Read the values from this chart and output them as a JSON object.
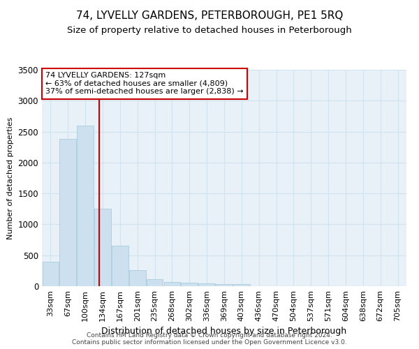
{
  "title": "74, LYVELLY GARDENS, PETERBOROUGH, PE1 5RQ",
  "subtitle": "Size of property relative to detached houses in Peterborough",
  "xlabel": "Distribution of detached houses by size in Peterborough",
  "ylabel": "Number of detached properties",
  "footer_line1": "Contains HM Land Registry data © Crown copyright and database right 2024.",
  "footer_line2": "Contains public sector information licensed under the Open Government Licence v3.0.",
  "categories": [
    "33sqm",
    "67sqm",
    "100sqm",
    "134sqm",
    "167sqm",
    "201sqm",
    "235sqm",
    "268sqm",
    "302sqm",
    "336sqm",
    "369sqm",
    "403sqm",
    "436sqm",
    "470sqm",
    "504sqm",
    "537sqm",
    "571sqm",
    "604sqm",
    "638sqm",
    "672sqm",
    "705sqm"
  ],
  "values": [
    400,
    2380,
    2600,
    1250,
    650,
    260,
    110,
    65,
    55,
    50,
    30,
    30,
    5,
    5,
    0,
    0,
    0,
    0,
    0,
    0,
    0
  ],
  "bar_color": "#cce0f0",
  "bar_edge_color": "#aaccdd",
  "grid_color": "#d0e4f0",
  "background_color": "#e8f0f8",
  "annotation_line1": "74 LYVELLY GARDENS: 127sqm",
  "annotation_line2": "← 63% of detached houses are smaller (4,809)",
  "annotation_line3": "37% of semi-detached houses are larger (2,838) →",
  "vline_color": "#cc0000",
  "annotation_box_edge": "#cc0000",
  "ylim": [
    0,
    3500
  ],
  "yticks": [
    0,
    500,
    1000,
    1500,
    2000,
    2500,
    3000,
    3500
  ],
  "title_fontsize": 11,
  "subtitle_fontsize": 9.5,
  "annotation_fontsize": 8,
  "tick_fontsize": 8,
  "ylabel_fontsize": 8,
  "xlabel_fontsize": 9
}
